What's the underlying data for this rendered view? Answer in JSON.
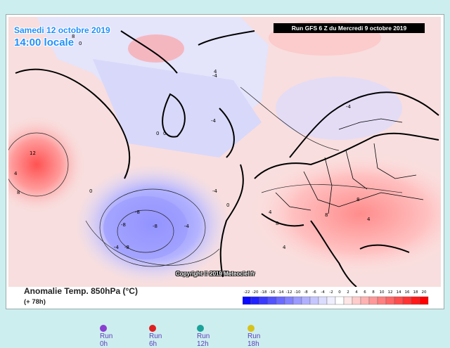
{
  "map": {
    "date": "Samedi 12 octobre 2019",
    "time": "14:00 locale",
    "run_info": "Run GFS 6 Z du Mercredi 9 octobre 2019",
    "copyright": "Copyright © 2019 Meteociel.fr",
    "contour_labels": [
      "12",
      "4",
      "8",
      "0",
      "-4",
      "-8",
      "4",
      "8",
      "0",
      "0",
      "-4",
      "-4",
      "-8",
      "-8",
      "-8",
      "-4",
      "-4",
      "0",
      "4",
      "8",
      "4",
      "8",
      "8",
      "0",
      "4",
      "-4"
    ]
  },
  "legend": {
    "title": "Anomalie Temp. 850hPa (°C)",
    "subtitle": "(+ 78h)",
    "ticks": [
      "-22",
      "-20",
      "-18",
      "-16",
      "-14",
      "-12",
      "-10",
      "-8",
      "-6",
      "-4",
      "-2",
      "0",
      "2",
      "4",
      "6",
      "8",
      "10",
      "12",
      "14",
      "16",
      "18",
      "20"
    ],
    "colors": [
      "#0a0aff",
      "#2222ff",
      "#3a3aff",
      "#5252ff",
      "#6a6aff",
      "#8282ff",
      "#9a9aff",
      "#b0b0ff",
      "#c6c6ff",
      "#dcdcff",
      "#eeeeff",
      "#ffffff",
      "#ffe6e6",
      "#ffcccc",
      "#ffb2b2",
      "#ff9999",
      "#ff8080",
      "#ff6666",
      "#ff4c4c",
      "#ff3333",
      "#ff1919",
      "#ff0000"
    ]
  },
  "runs": [
    {
      "label": "Run 0h",
      "color": "#8a3fd1"
    },
    {
      "label": "Run 6h",
      "color": "#e02020"
    },
    {
      "label": "Run 12h",
      "color": "#1aa39a"
    },
    {
      "label": "Run 18h",
      "color": "#d6c21a"
    }
  ]
}
